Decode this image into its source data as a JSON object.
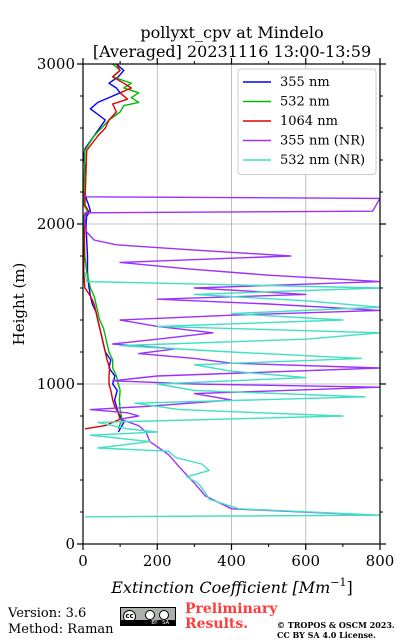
{
  "footer": {
    "version": "Version: 3.6",
    "method": "Method: Raman",
    "prelim_line1": "Preliminary",
    "prelim_line2": "Results.",
    "copyright_line1": "© TROPOS & OSCM 2023.",
    "copyright_line2": "CC BY SA 4.0 License.",
    "cc_badge_text": "BY   SA",
    "prelim_color": "#ff3b3b"
  },
  "chart_data": {
    "type": "line",
    "title_line1": "pollyxt_cpv at Mindelo",
    "title_line2": "[Averaged] 20231116 13:00-13:59",
    "xlabel": "Extinction Coefficient [Mm",
    "xlabel_sup": "−1",
    "xlabel_end": "]",
    "ylabel": "Height (m)",
    "xlim": [
      0,
      800
    ],
    "ylim": [
      0,
      3000
    ],
    "xticks": [
      0,
      200,
      400,
      600,
      800
    ],
    "yticks": [
      0,
      1000,
      2000,
      3000
    ],
    "grid": true,
    "legend_position": "top-right",
    "series": [
      {
        "name": "355 nm",
        "color": "#0000ff",
        "points": [
          [
            95,
            700
          ],
          [
            110,
            760
          ],
          [
            95,
            820
          ],
          [
            90,
            860
          ],
          [
            85,
            900
          ],
          [
            92,
            960
          ],
          [
            80,
            1000
          ],
          [
            86,
            1050
          ],
          [
            70,
            1100
          ],
          [
            75,
            1150
          ],
          [
            60,
            1200
          ],
          [
            55,
            1250
          ],
          [
            50,
            1300
          ],
          [
            45,
            1350
          ],
          [
            40,
            1400
          ],
          [
            35,
            1450
          ],
          [
            25,
            1500
          ],
          [
            20,
            1550
          ],
          [
            15,
            1620
          ],
          [
            12,
            1700
          ],
          [
            12,
            1800
          ],
          [
            10,
            1900
          ],
          [
            8,
            2000
          ],
          [
            10,
            2050
          ],
          [
            20,
            2080
          ],
          [
            15,
            2120
          ],
          [
            10,
            2150
          ],
          [
            8,
            2170
          ],
          [
            2,
            2180
          ],
          [
            2,
            2250
          ],
          [
            6,
            2350
          ],
          [
            2,
            2420
          ],
          [
            5,
            2470
          ],
          [
            60,
            2650
          ],
          [
            20,
            2720
          ],
          [
            40,
            2760
          ],
          [
            70,
            2790
          ],
          [
            100,
            2820
          ],
          [
            90,
            2850
          ],
          [
            70,
            2880
          ],
          [
            95,
            2920
          ],
          [
            110,
            2960
          ],
          [
            90,
            3000
          ]
        ]
      },
      {
        "name": "532 nm",
        "color": "#00bb00",
        "points": [
          [
            95,
            720
          ],
          [
            105,
            780
          ],
          [
            100,
            840
          ],
          [
            98,
            900
          ],
          [
            100,
            960
          ],
          [
            95,
            1000
          ],
          [
            90,
            1050
          ],
          [
            80,
            1100
          ],
          [
            80,
            1150
          ],
          [
            70,
            1200
          ],
          [
            65,
            1250
          ],
          [
            60,
            1300
          ],
          [
            55,
            1350
          ],
          [
            45,
            1400
          ],
          [
            40,
            1450
          ],
          [
            35,
            1500
          ],
          [
            30,
            1550
          ],
          [
            20,
            1600
          ],
          [
            15,
            1650
          ],
          [
            10,
            1700
          ],
          [
            5,
            1800
          ],
          [
            2,
            2050
          ],
          [
            12,
            2080
          ],
          [
            2,
            2120
          ],
          [
            5,
            2460
          ],
          [
            30,
            2550
          ],
          [
            70,
            2650
          ],
          [
            100,
            2700
          ],
          [
            110,
            2740
          ],
          [
            150,
            2760
          ],
          [
            130,
            2790
          ],
          [
            150,
            2820
          ],
          [
            110,
            2850
          ],
          [
            130,
            2880
          ],
          [
            80,
            2920
          ],
          [
            100,
            2960
          ],
          [
            80,
            3000
          ]
        ]
      },
      {
        "name": "1064 nm",
        "color": "#dd0000",
        "points": [
          [
            5,
            720
          ],
          [
            60,
            740
          ],
          [
            100,
            780
          ],
          [
            95,
            820
          ],
          [
            85,
            860
          ],
          [
            80,
            900
          ],
          [
            75,
            960
          ],
          [
            70,
            1000
          ],
          [
            70,
            1050
          ],
          [
            72,
            1100
          ],
          [
            65,
            1150
          ],
          [
            60,
            1200
          ],
          [
            55,
            1250
          ],
          [
            50,
            1300
          ],
          [
            45,
            1350
          ],
          [
            40,
            1400
          ],
          [
            35,
            1450
          ],
          [
            30,
            1500
          ],
          [
            20,
            1550
          ],
          [
            5,
            1600
          ],
          [
            2,
            1700
          ],
          [
            5,
            2050
          ],
          [
            15,
            2080
          ],
          [
            5,
            2120
          ],
          [
            10,
            2460
          ],
          [
            40,
            2550
          ],
          [
            60,
            2600
          ],
          [
            70,
            2650
          ],
          [
            90,
            2700
          ],
          [
            80,
            2750
          ],
          [
            120,
            2780
          ],
          [
            100,
            2820
          ],
          [
            130,
            2850
          ],
          [
            110,
            2880
          ],
          [
            80,
            2920
          ],
          [
            100,
            2960
          ],
          [
            90,
            3000
          ]
        ]
      },
      {
        "name": "355 nm (NR)",
        "color": "#9b30ff",
        "points": [
          [
            780,
            180
          ],
          [
            400,
            220
          ],
          [
            330,
            300
          ],
          [
            300,
            380
          ],
          [
            260,
            480
          ],
          [
            230,
            560
          ],
          [
            180,
            640
          ],
          [
            170,
            700
          ],
          [
            150,
            740
          ],
          [
            100,
            780
          ],
          [
            150,
            800
          ],
          [
            120,
            820
          ],
          [
            20,
            840
          ],
          [
            170,
            860
          ],
          [
            400,
            900
          ],
          [
            300,
            940
          ],
          [
            800,
            980
          ],
          [
            300,
            1000
          ],
          [
            80,
            1020
          ],
          [
            200,
            1050
          ],
          [
            800,
            1100
          ],
          [
            400,
            1130
          ],
          [
            300,
            1160
          ],
          [
            150,
            1190
          ],
          [
            250,
            1220
          ],
          [
            80,
            1250
          ],
          [
            200,
            1280
          ],
          [
            350,
            1320
          ],
          [
            200,
            1360
          ],
          [
            100,
            1400
          ],
          [
            400,
            1430
          ],
          [
            800,
            1460
          ],
          [
            500,
            1500
          ],
          [
            200,
            1530
          ],
          [
            600,
            1560
          ],
          [
            300,
            1600
          ],
          [
            800,
            1640
          ],
          [
            500,
            1680
          ],
          [
            280,
            1720
          ],
          [
            100,
            1760
          ],
          [
            560,
            1800
          ],
          [
            280,
            1840
          ],
          [
            90,
            1870
          ],
          [
            30,
            1900
          ],
          [
            10,
            1950
          ],
          [
            5,
            2000
          ],
          [
            5,
            2070
          ],
          [
            780,
            2080
          ],
          [
            800,
            2160
          ],
          [
            2,
            2170
          ],
          [
            2,
            2200
          ]
        ]
      },
      {
        "name": "532 nm (NR)",
        "color": "#40e0c0",
        "points": [
          [
            5,
            170
          ],
          [
            800,
            180
          ],
          [
            420,
            220
          ],
          [
            340,
            280
          ],
          [
            330,
            320
          ],
          [
            310,
            380
          ],
          [
            280,
            420
          ],
          [
            340,
            460
          ],
          [
            320,
            500
          ],
          [
            250,
            540
          ],
          [
            230,
            580
          ],
          [
            40,
            600
          ],
          [
            180,
            640
          ],
          [
            20,
            680
          ],
          [
            200,
            700
          ],
          [
            120,
            720
          ],
          [
            40,
            760
          ],
          [
            700,
            800
          ],
          [
            260,
            840
          ],
          [
            140,
            880
          ],
          [
            760,
            920
          ],
          [
            300,
            960
          ],
          [
            200,
            1000
          ],
          [
            600,
            1040
          ],
          [
            400,
            1080
          ],
          [
            300,
            1120
          ],
          [
            750,
            1160
          ],
          [
            400,
            1200
          ],
          [
            100,
            1240
          ],
          [
            600,
            1280
          ],
          [
            800,
            1320
          ],
          [
            200,
            1360
          ],
          [
            700,
            1400
          ],
          [
            400,
            1440
          ],
          [
            800,
            1480
          ],
          [
            600,
            1520
          ],
          [
            300,
            1560
          ],
          [
            800,
            1600
          ],
          [
            10,
            1640
          ],
          [
            5,
            1700
          ]
        ]
      }
    ]
  }
}
